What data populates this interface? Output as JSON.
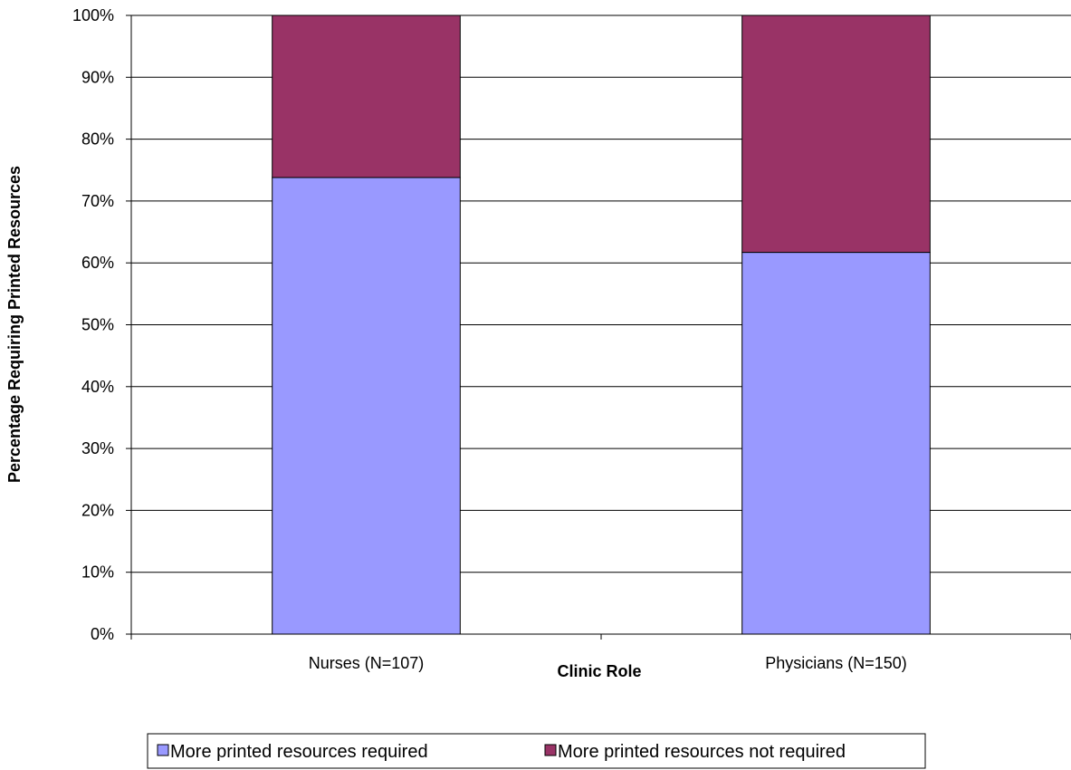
{
  "chart_data": {
    "type": "bar",
    "stacked": true,
    "percent_scale": true,
    "categories": [
      "Nurses (N=107)",
      "Physicians (N=150)"
    ],
    "series": [
      {
        "name": "More printed resources required",
        "values": [
          73.8,
          61.7
        ],
        "color": "#9999ff"
      },
      {
        "name": "More printed resources not required",
        "values": [
          26.2,
          38.3
        ],
        "color": "#993366"
      }
    ],
    "xlabel": "Clinic Role",
    "ylabel": "Percentage Requiring Printed Resources",
    "ylim": [
      0,
      100
    ],
    "yticks": [
      "0%",
      "10%",
      "20%",
      "30%",
      "40%",
      "50%",
      "60%",
      "70%",
      "80%",
      "90%",
      "100%"
    ],
    "grid": true,
    "legend_position": "bottom"
  }
}
